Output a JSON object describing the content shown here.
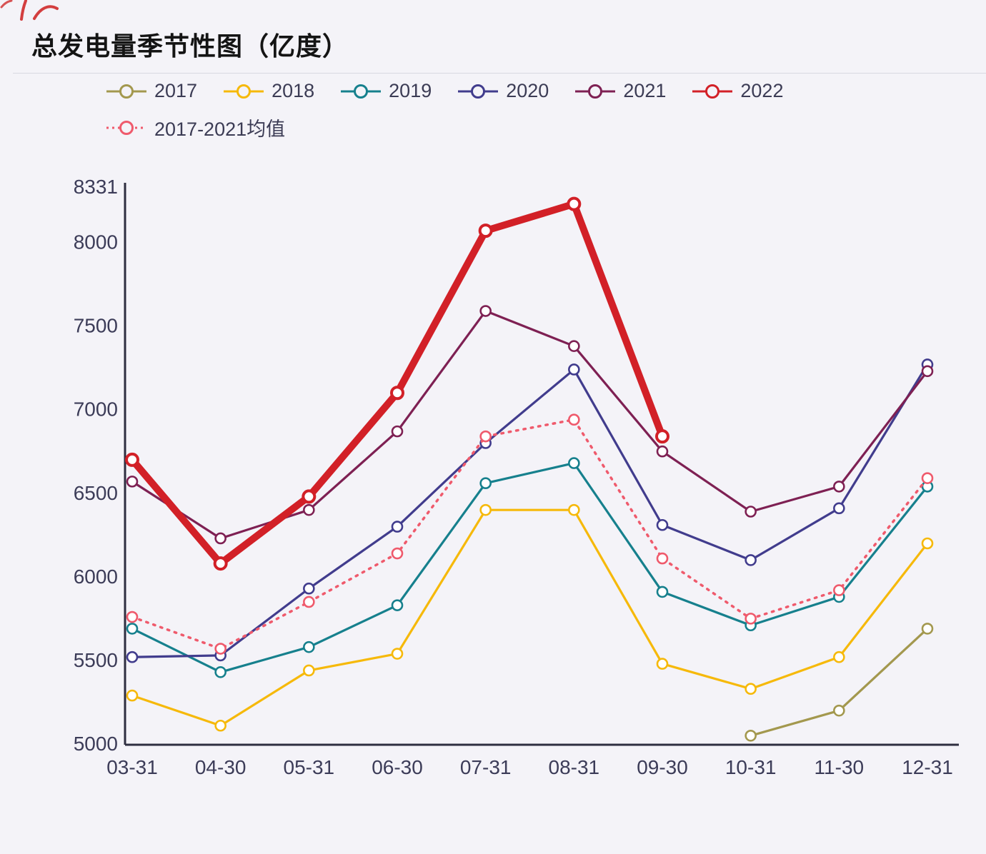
{
  "page": {
    "title": "总发电量季节性图（亿度）"
  },
  "chart_data": {
    "type": "line",
    "title": "总发电量季节性图（亿度）",
    "ylabel": "",
    "xlabel": "",
    "ylim": [
      5000,
      8331
    ],
    "yticks": [
      5000,
      5500,
      6000,
      6500,
      7000,
      7500,
      8000,
      8331
    ],
    "grid": false,
    "legend_position": "top",
    "marker": "open-circle",
    "categories": [
      "03-31",
      "04-30",
      "05-31",
      "06-30",
      "07-31",
      "08-31",
      "09-30",
      "10-31",
      "11-30",
      "12-31"
    ],
    "series": [
      {
        "name": "2017",
        "color": "#a3984e",
        "style": "solid",
        "values": [
          null,
          null,
          null,
          null,
          null,
          null,
          null,
          5050,
          5200,
          5690
        ]
      },
      {
        "name": "2018",
        "color": "#f6b90a",
        "style": "solid",
        "values": [
          5290,
          5110,
          5440,
          5540,
          6400,
          6400,
          5480,
          5330,
          5520,
          6200
        ]
      },
      {
        "name": "2019",
        "color": "#16808d",
        "style": "solid",
        "values": [
          5690,
          5430,
          5580,
          5830,
          6560,
          6680,
          5910,
          5710,
          5880,
          6540
        ]
      },
      {
        "name": "2020",
        "color": "#413c8d",
        "style": "solid",
        "values": [
          5520,
          5530,
          5930,
          6300,
          6800,
          7240,
          6310,
          6100,
          6410,
          7270
        ]
      },
      {
        "name": "2021",
        "color": "#7e2053",
        "style": "solid",
        "values": [
          6570,
          6230,
          6400,
          6870,
          7590,
          7380,
          6750,
          6390,
          6540,
          7230
        ]
      },
      {
        "name": "2022",
        "color": "#d22027",
        "style": "solid",
        "thick": true,
        "values": [
          6700,
          6080,
          6480,
          7100,
          8070,
          8230,
          6840,
          null,
          null,
          null
        ]
      },
      {
        "name": "2017-2021均值",
        "color": "#ef5a6c",
        "style": "dotted",
        "values": [
          5760,
          5570,
          5850,
          6140,
          6840,
          6940,
          6110,
          5750,
          5920,
          6590
        ]
      }
    ]
  }
}
